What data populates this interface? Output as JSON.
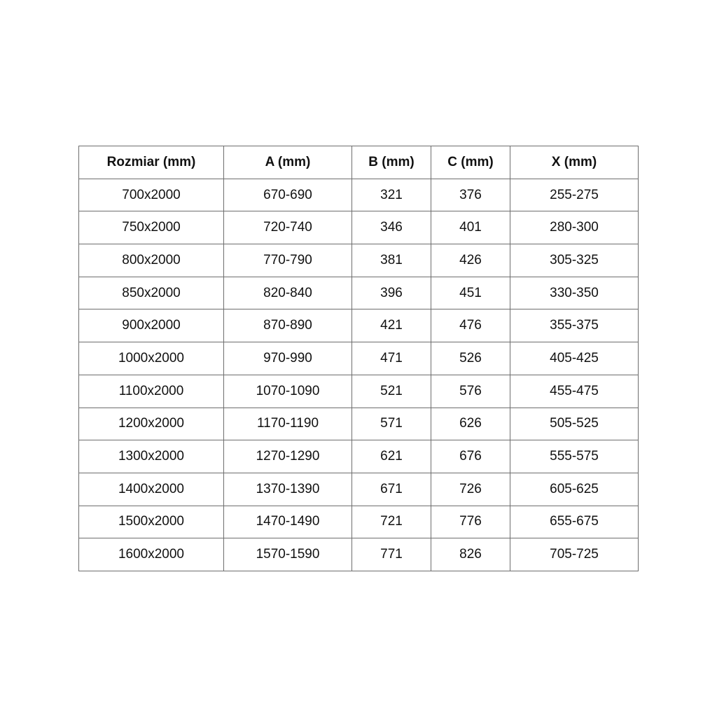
{
  "table": {
    "headers": [
      "Rozmiar (mm)",
      "A (mm)",
      "B (mm)",
      "C (mm)",
      "X (mm)"
    ],
    "rows": [
      [
        "700x2000",
        "670-690",
        "321",
        "376",
        "255-275"
      ],
      [
        "750x2000",
        "720-740",
        "346",
        "401",
        "280-300"
      ],
      [
        "800x2000",
        "770-790",
        "381",
        "426",
        "305-325"
      ],
      [
        "850x2000",
        "820-840",
        "396",
        "451",
        "330-350"
      ],
      [
        "900x2000",
        "870-890",
        "421",
        "476",
        "355-375"
      ],
      [
        "1000x2000",
        "970-990",
        "471",
        "526",
        "405-425"
      ],
      [
        "1100x2000",
        "1070-1090",
        "521",
        "576",
        "455-475"
      ],
      [
        "1200x2000",
        "1170-1190",
        "571",
        "626",
        "505-525"
      ],
      [
        "1300x2000",
        "1270-1290",
        "621",
        "676",
        "555-575"
      ],
      [
        "1400x2000",
        "1370-1390",
        "671",
        "726",
        "605-625"
      ],
      [
        "1500x2000",
        "1470-1490",
        "721",
        "776",
        "655-675"
      ],
      [
        "1600x2000",
        "1570-1590",
        "771",
        "826",
        "705-725"
      ]
    ]
  }
}
